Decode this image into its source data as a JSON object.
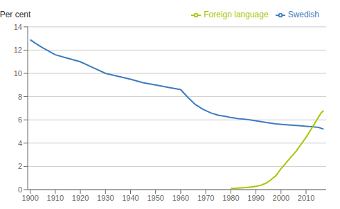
{
  "chart_data": {
    "type": "line",
    "ylabel": "Per cent",
    "series": [
      {
        "name": "Swedish",
        "color": "#3b7bbf",
        "x": [
          1900,
          1902,
          1905,
          1910,
          1915,
          1920,
          1925,
          1930,
          1935,
          1940,
          1945,
          1950,
          1955,
          1960,
          1963,
          1966,
          1969,
          1972,
          1975,
          1978,
          1980,
          1983,
          1986,
          1989,
          1992,
          1995,
          1998,
          2001,
          2004,
          2007,
          2010,
          2013,
          2015,
          2017
        ],
        "values": [
          12.9,
          12.6,
          12.2,
          11.6,
          11.3,
          11.0,
          10.5,
          10.0,
          9.75,
          9.5,
          9.2,
          9.0,
          8.8,
          8.6,
          7.9,
          7.3,
          6.9,
          6.6,
          6.4,
          6.3,
          6.2,
          6.1,
          6.05,
          5.95,
          5.85,
          5.75,
          5.65,
          5.6,
          5.55,
          5.5,
          5.45,
          5.4,
          5.35,
          5.2
        ]
      },
      {
        "name": "Foreign language",
        "color": "#a8c400",
        "x": [
          1980,
          1982,
          1984,
          1986,
          1988,
          1990,
          1992,
          1994,
          1996,
          1998,
          2000,
          2002,
          2004,
          2006,
          2008,
          2010,
          2012,
          2014,
          2016,
          2017
        ],
        "values": [
          0.1,
          0.12,
          0.15,
          0.18,
          0.22,
          0.28,
          0.38,
          0.55,
          0.85,
          1.2,
          1.8,
          2.3,
          2.8,
          3.3,
          3.9,
          4.5,
          5.2,
          5.9,
          6.6,
          6.8
        ]
      }
    ],
    "xlim": [
      1899,
      2018
    ],
    "xticks": [
      1900,
      1910,
      1920,
      1930,
      1940,
      1950,
      1960,
      1970,
      1980,
      1990,
      2000,
      2010
    ],
    "ylim": [
      0,
      14
    ],
    "yticks": [
      0,
      2,
      4,
      6,
      8,
      10,
      12,
      14
    ],
    "grid": true,
    "legend": "upper right"
  }
}
